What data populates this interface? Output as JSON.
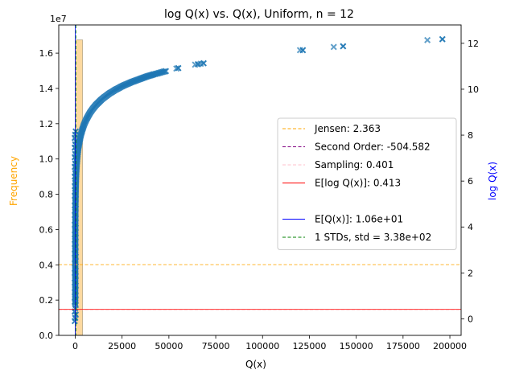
{
  "chart_data": {
    "type": "scatter",
    "title": "log Q(x) vs. Q(x), Uniform, n = 12",
    "xlabel": "Q(x)",
    "ylabel_left": "Frequency",
    "ylabel_right": "log Q(x)",
    "left_axis_multiplier": "1e7",
    "xlim": [
      -8800,
      206000
    ],
    "ylim_left": [
      0,
      17600000
    ],
    "ylim_right": [
      -0.72,
      12.8
    ],
    "x_ticks": [
      0,
      25000,
      50000,
      75000,
      100000,
      125000,
      150000,
      175000,
      200000
    ],
    "x_tick_labels": [
      "0",
      "25000",
      "50000",
      "75000",
      "100000",
      "125000",
      "150000",
      "175000",
      "200000"
    ],
    "y_left_ticks": [
      0,
      2000000,
      4000000,
      6000000,
      8000000,
      10000000,
      12000000,
      14000000,
      16000000
    ],
    "y_left_tick_labels": [
      "0.0",
      "0.2",
      "0.4",
      "0.6",
      "0.8",
      "1.0",
      "1.2",
      "1.4",
      "1.6"
    ],
    "y_right_ticks": [
      0,
      2,
      4,
      6,
      8,
      10,
      12
    ],
    "y_right_tick_labels": [
      "0",
      "2",
      "4",
      "6",
      "8",
      "10",
      "12"
    ],
    "histogram": {
      "color": "#fdd9a0",
      "edge_color": "#b8a98a",
      "bins": [
        {
          "x0": 0,
          "x1": 3900,
          "count": 16750000
        }
      ]
    },
    "scatter_series": {
      "color": "#1f77b4",
      "marker": "x",
      "curve_points": [
        [
          2,
          0.69
        ],
        [
          5,
          1.61
        ],
        [
          10,
          2.3
        ],
        [
          25,
          3.22
        ],
        [
          60,
          4.09
        ],
        [
          120,
          4.79
        ],
        [
          250,
          5.52
        ],
        [
          400,
          5.99
        ],
        [
          600,
          6.4
        ],
        [
          900,
          6.8
        ],
        [
          1300,
          7.17
        ],
        [
          1800,
          7.5
        ],
        [
          2400,
          7.78
        ],
        [
          3000,
          8.01
        ],
        [
          3800,
          8.24
        ],
        [
          4700,
          8.46
        ],
        [
          5700,
          8.65
        ],
        [
          6800,
          8.82
        ],
        [
          8000,
          8.99
        ],
        [
          9500,
          9.16
        ],
        [
          11000,
          9.31
        ],
        [
          12500,
          9.43
        ],
        [
          14000,
          9.55
        ],
        [
          15500,
          9.65
        ],
        [
          17000,
          9.74
        ],
        [
          18500,
          9.83
        ],
        [
          20000,
          9.9
        ],
        [
          21500,
          9.98
        ],
        [
          23000,
          10.04
        ],
        [
          24500,
          10.11
        ],
        [
          26000,
          10.17
        ],
        [
          28000,
          10.24
        ],
        [
          30000,
          10.31
        ],
        [
          32000,
          10.37
        ],
        [
          34000,
          10.43
        ],
        [
          36000,
          10.49
        ],
        [
          38000,
          10.55
        ],
        [
          40000,
          10.6
        ],
        [
          42000,
          10.65
        ],
        [
          44000,
          10.69
        ],
        [
          46500,
          10.75
        ],
        [
          49000,
          10.8
        ]
      ],
      "outlier_points": [
        [
          54000,
          10.9
        ],
        [
          55000,
          10.92
        ],
        [
          64000,
          11.07
        ],
        [
          65500,
          11.09
        ],
        [
          67000,
          11.11
        ],
        [
          68500,
          11.13
        ],
        [
          120000,
          11.7
        ],
        [
          121500,
          11.7
        ],
        [
          138000,
          11.84
        ],
        [
          143000,
          11.87
        ],
        [
          188000,
          12.14
        ],
        [
          196000,
          12.18
        ]
      ]
    },
    "reference_lines": [
      {
        "label": "Jensen: 2.363",
        "axis": "right",
        "orientation": "horizontal",
        "value": 2.363,
        "color": "#ffa500",
        "style": "dashed"
      },
      {
        "label": "Second Order: -504.582",
        "axis": "right",
        "orientation": "horizontal",
        "value": -504.582,
        "color": "#800080",
        "style": "dashed"
      },
      {
        "label": "Sampling: 0.401",
        "axis": "right",
        "orientation": "horizontal",
        "value": 0.401,
        "color": "#ffc0cb",
        "style": "dashed"
      },
      {
        "label": "E[log Q(x)]: 0.413",
        "axis": "right",
        "orientation": "horizontal",
        "value": 0.413,
        "color": "#ff0000",
        "style": "solid"
      },
      {
        "label": "E[Q(x)]: 1.06e+01",
        "axis": "x",
        "orientation": "vertical",
        "value": 10.6,
        "color": "#0000ff",
        "style": "solid"
      },
      {
        "label": "1 STDs, std = 3.38e+02",
        "axis": "x",
        "orientation": "vertical",
        "value": 348.6,
        "color": "#008000",
        "style": "dashed"
      }
    ],
    "legend": {
      "placement": "center-right",
      "entries": [
        {
          "label": "Jensen: 2.363",
          "color": "#ffa500",
          "style": "dashed"
        },
        {
          "label": "Second Order: -504.582",
          "color": "#800080",
          "style": "dashed"
        },
        {
          "label": "Sampling: 0.401",
          "color": "#ffc0cb",
          "style": "dashed"
        },
        {
          "label": "E[log Q(x)]: 0.413",
          "color": "#ff0000",
          "style": "solid"
        },
        {
          "label": "",
          "color": "",
          "style": "none"
        },
        {
          "label": "E[Q(x)]: 1.06e+01",
          "color": "#0000ff",
          "style": "solid"
        },
        {
          "label": "1 STDs, std = 3.38e+02",
          "color": "#008000",
          "style": "dashed"
        }
      ]
    },
    "colors": {
      "left_label": "#ffa500",
      "right_label": "#0000ff"
    }
  }
}
